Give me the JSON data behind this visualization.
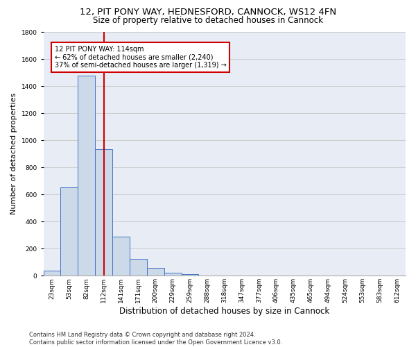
{
  "title_line1": "12, PIT PONY WAY, HEDNESFORD, CANNOCK, WS12 4FN",
  "title_line2": "Size of property relative to detached houses in Cannock",
  "xlabel": "Distribution of detached houses by size in Cannock",
  "ylabel": "Number of detached properties",
  "categories": [
    "23sqm",
    "53sqm",
    "82sqm",
    "112sqm",
    "141sqm",
    "171sqm",
    "200sqm",
    "229sqm",
    "259sqm",
    "288sqm",
    "318sqm",
    "347sqm",
    "377sqm",
    "406sqm",
    "435sqm",
    "465sqm",
    "494sqm",
    "524sqm",
    "553sqm",
    "583sqm",
    "612sqm"
  ],
  "values": [
    38,
    650,
    1475,
    935,
    290,
    125,
    60,
    22,
    12,
    0,
    0,
    0,
    0,
    0,
    0,
    0,
    0,
    0,
    0,
    0,
    0
  ],
  "bar_color": "#ccd9e8",
  "bar_edge_color": "#4472c4",
  "vline_x": 3,
  "vline_color": "#cc0000",
  "annotation_line1": "12 PIT PONY WAY: 114sqm",
  "annotation_line2": "← 62% of detached houses are smaller (2,240)",
  "annotation_line3": "37% of semi-detached houses are larger (1,319) →",
  "annotation_box_color": "#ffffff",
  "annotation_box_edge": "#cc0000",
  "ylim": [
    0,
    1800
  ],
  "yticks": [
    0,
    200,
    400,
    600,
    800,
    1000,
    1200,
    1400,
    1600,
    1800
  ],
  "grid_color": "#cccccc",
  "bg_color": "#e8edf5",
  "footer": "Contains HM Land Registry data © Crown copyright and database right 2024.\nContains public sector information licensed under the Open Government Licence v3.0.",
  "title_fontsize": 9.5,
  "subtitle_fontsize": 8.5,
  "tick_fontsize": 6.5,
  "ylabel_fontsize": 8,
  "xlabel_fontsize": 8.5,
  "annotation_fontsize": 7,
  "footer_fontsize": 6
}
